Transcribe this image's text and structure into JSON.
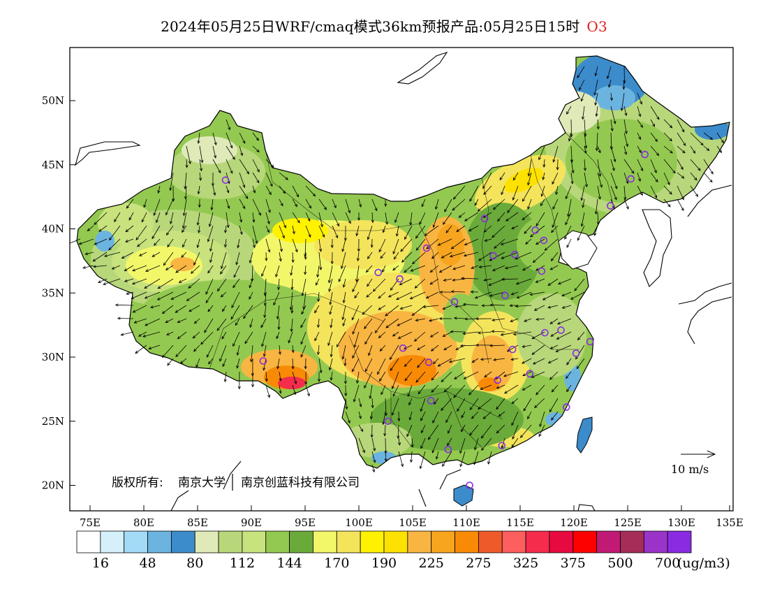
{
  "title": {
    "main": "2024年05月25日WRF/cmaq模式36km预报产品:05月25日15时",
    "species": "O3"
  },
  "axes": {
    "lat_labels": [
      "50N",
      "45N",
      "40N",
      "35N",
      "30N",
      "25N",
      "20N"
    ],
    "lon_labels": [
      "75E",
      "80E",
      "85E",
      "90E",
      "95E",
      "100E",
      "105E",
      "110E",
      "115E",
      "120E",
      "125E",
      "130E",
      "135E"
    ],
    "lon_range": [
      73,
      135
    ],
    "lat_range": [
      18,
      54
    ]
  },
  "colorbar": {
    "colors": [
      "#ffffff",
      "#d6f0fb",
      "#a3dbf7",
      "#6cb4e0",
      "#3c8ccc",
      "#dfeab8",
      "#b8d77a",
      "#c8e27d",
      "#93c950",
      "#6aaa3a",
      "#f2f76a",
      "#f4e45c",
      "#fff200",
      "#fde100",
      "#f9b542",
      "#f7a51e",
      "#f98a06",
      "#ef5a2a",
      "#fd5e5e",
      "#f52c4c",
      "#e70a40",
      "#fd0101",
      "#c11a74",
      "#a52d58",
      "#9a34c9",
      "#8a2be2"
    ],
    "labels": [
      "16",
      "48",
      "80",
      "112",
      "144",
      "170",
      "190",
      "225",
      "275",
      "325",
      "375",
      "500",
      "700"
    ],
    "unit": "(ug/m3)"
  },
  "copyright": {
    "prefix": "版权所有:",
    "org1": "南京大学",
    "org2": "南京创蓝科技有限公司"
  },
  "wind_reference": {
    "label": "10 m/s"
  },
  "stations": [
    {
      "lon": 87.6,
      "lat": 43.8
    },
    {
      "lon": 101.8,
      "lat": 36.6
    },
    {
      "lon": 103.8,
      "lat": 36.1
    },
    {
      "lon": 106.3,
      "lat": 38.5
    },
    {
      "lon": 111.7,
      "lat": 40.8
    },
    {
      "lon": 116.4,
      "lat": 39.9
    },
    {
      "lon": 117.2,
      "lat": 39.1
    },
    {
      "lon": 114.5,
      "lat": 38.0
    },
    {
      "lon": 112.5,
      "lat": 37.9
    },
    {
      "lon": 117.0,
      "lat": 36.7
    },
    {
      "lon": 113.6,
      "lat": 34.8
    },
    {
      "lon": 108.9,
      "lat": 34.3
    },
    {
      "lon": 104.1,
      "lat": 30.7
    },
    {
      "lon": 106.5,
      "lat": 29.6
    },
    {
      "lon": 91.1,
      "lat": 29.7
    },
    {
      "lon": 114.3,
      "lat": 30.6
    },
    {
      "lon": 112.9,
      "lat": 28.2
    },
    {
      "lon": 115.9,
      "lat": 28.7
    },
    {
      "lon": 117.3,
      "lat": 31.9
    },
    {
      "lon": 118.8,
      "lat": 32.1
    },
    {
      "lon": 120.2,
      "lat": 30.3
    },
    {
      "lon": 121.5,
      "lat": 31.2
    },
    {
      "lon": 119.3,
      "lat": 26.1
    },
    {
      "lon": 106.7,
      "lat": 26.6
    },
    {
      "lon": 102.7,
      "lat": 25.0
    },
    {
      "lon": 108.3,
      "lat": 22.8
    },
    {
      "lon": 113.3,
      "lat": 23.1
    },
    {
      "lon": 110.3,
      "lat": 20.0
    },
    {
      "lon": 126.6,
      "lat": 45.8
    },
    {
      "lon": 125.3,
      "lat": 43.9
    },
    {
      "lon": 123.4,
      "lat": 41.8
    }
  ]
}
